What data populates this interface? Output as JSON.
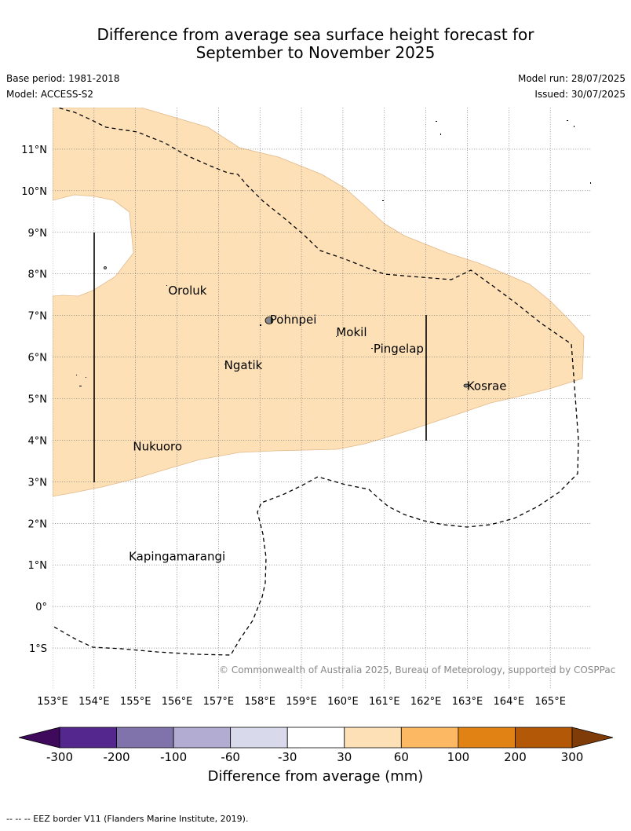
{
  "title_line1": "Difference from average sea surface height forecast for",
  "title_line2": "September to November 2025",
  "base_period": "Base period: 1981-2018",
  "model": "Model: ACCESS-S2",
  "model_run": "Model run: 28/07/2025",
  "issued": "Issued: 30/07/2025",
  "copyright": "© Commonwealth of Australia 2025, Bureau of Meteorology, supported by COSPPac",
  "footnote": "--  --  -- EEZ border V11 (Flanders Marine Institute, 2019).",
  "map": {
    "lon_range": [
      153,
      166
    ],
    "lat_range": [
      -2,
      12
    ],
    "lat_labels": [
      {
        "value": 11,
        "text": "11°N"
      },
      {
        "value": 10,
        "text": "10°N"
      },
      {
        "value": 9,
        "text": "9°N"
      },
      {
        "value": 8,
        "text": "8°N"
      },
      {
        "value": 7,
        "text": "7°N"
      },
      {
        "value": 6,
        "text": "6°N"
      },
      {
        "value": 5,
        "text": "5°N"
      },
      {
        "value": 4,
        "text": "4°N"
      },
      {
        "value": 3,
        "text": "3°N"
      },
      {
        "value": 2,
        "text": "2°N"
      },
      {
        "value": 1,
        "text": "1°N"
      },
      {
        "value": 0,
        "text": "0°"
      },
      {
        "value": -1,
        "text": "1°S"
      }
    ],
    "lon_labels": [
      {
        "value": 153,
        "text": "153°E"
      },
      {
        "value": 154,
        "text": "154°E"
      },
      {
        "value": 155,
        "text": "155°E"
      },
      {
        "value": 156,
        "text": "156°E"
      },
      {
        "value": 157,
        "text": "157°E"
      },
      {
        "value": 158,
        "text": "158°E"
      },
      {
        "value": 159,
        "text": "159°E"
      },
      {
        "value": 160,
        "text": "160°E"
      },
      {
        "value": 161,
        "text": "161°E"
      },
      {
        "value": 162,
        "text": "162°E"
      },
      {
        "value": 163,
        "text": "163°E"
      },
      {
        "value": 164,
        "text": "164°E"
      },
      {
        "value": 165,
        "text": "165°E"
      }
    ],
    "places": [
      {
        "name": "Oroluk",
        "lon": 155.75,
        "lat": 7.6
      },
      {
        "name": "Pohnpei",
        "lon": 158.2,
        "lat": 6.9
      },
      {
        "name": "Mokil",
        "lon": 159.8,
        "lat": 6.6
      },
      {
        "name": "Pingelap",
        "lon": 160.7,
        "lat": 6.2
      },
      {
        "name": "Ngatik",
        "lon": 157.1,
        "lat": 5.8
      },
      {
        "name": "Kosrae",
        "lon": 162.95,
        "lat": 5.3
      },
      {
        "name": "Nukuoro",
        "lon": 154.9,
        "lat": 3.85
      },
      {
        "name": "Kapingamarangi",
        "lon": 154.8,
        "lat": 1.2
      }
    ],
    "anomaly_fill_color": "#fde0b6"
  },
  "colorbar": {
    "title": "Difference from average (mm)",
    "ticks": [
      "-300",
      "-200",
      "-100",
      "-60",
      "-30",
      "30",
      "60",
      "100",
      "200",
      "300"
    ],
    "colors": [
      "#3f0a5c",
      "#54278f",
      "#8073ac",
      "#b2abd2",
      "#d8daeb",
      "#ffffff",
      "#fee0b6",
      "#fdb863",
      "#e08214",
      "#b35806",
      "#7f3b08"
    ]
  }
}
